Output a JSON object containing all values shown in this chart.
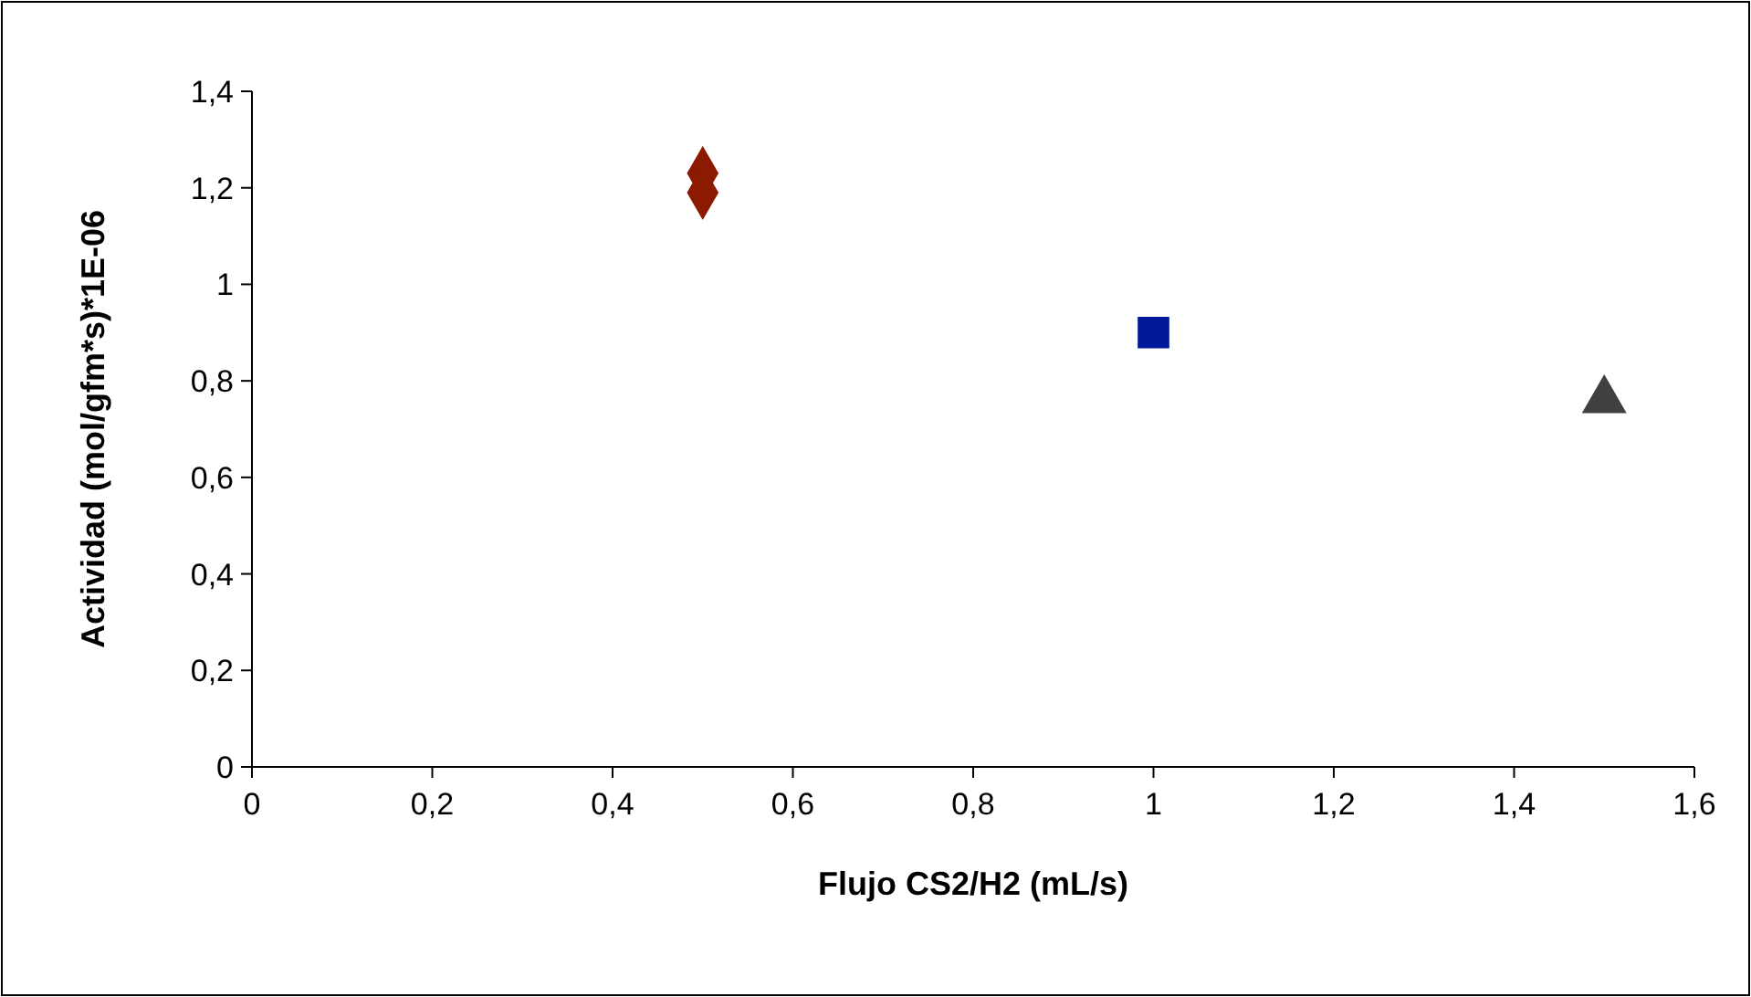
{
  "chart_data": {
    "type": "scatter",
    "xlabel": "Flujo CS2/H2 (mL/s)",
    "ylabel": "Actividad (mol/gfm*s)*1E-06",
    "xlim": [
      0,
      1.6
    ],
    "xticks": [
      {
        "value": 0,
        "label": "0"
      },
      {
        "value": 0.2,
        "label": "0,2"
      },
      {
        "value": 0.4,
        "label": "0,4"
      },
      {
        "value": 0.6,
        "label": "0,6"
      },
      {
        "value": 0.8,
        "label": "0,8"
      },
      {
        "value": 1,
        "label": "1"
      },
      {
        "value": 1.2,
        "label": "1,2"
      },
      {
        "value": 1.4,
        "label": "1,4"
      },
      {
        "value": 1.6,
        "label": "1,6"
      }
    ],
    "ylim": [
      0,
      1.4
    ],
    "yticks": [
      {
        "value": 0,
        "label": "0"
      },
      {
        "value": 0.2,
        "label": "0,2"
      },
      {
        "value": 0.4,
        "label": "0,4"
      },
      {
        "value": 0.6,
        "label": "0,6"
      },
      {
        "value": 0.8,
        "label": "0,8"
      },
      {
        "value": 1,
        "label": "1"
      },
      {
        "value": 1.2,
        "label": "1,2"
      },
      {
        "value": 1.4,
        "label": "1,4"
      }
    ],
    "grid": false,
    "series": [
      {
        "color": "#8b1a00",
        "marker": "diamond",
        "x": [
          0.5,
          0.5
        ],
        "values": [
          1.23,
          1.19
        ]
      },
      {
        "color": "#001a99",
        "marker": "square",
        "x": [
          1
        ],
        "values": [
          0.9
        ]
      },
      {
        "color": "#404040",
        "marker": "triangle",
        "x": [
          1.5
        ],
        "values": [
          0.76
        ]
      }
    ]
  }
}
